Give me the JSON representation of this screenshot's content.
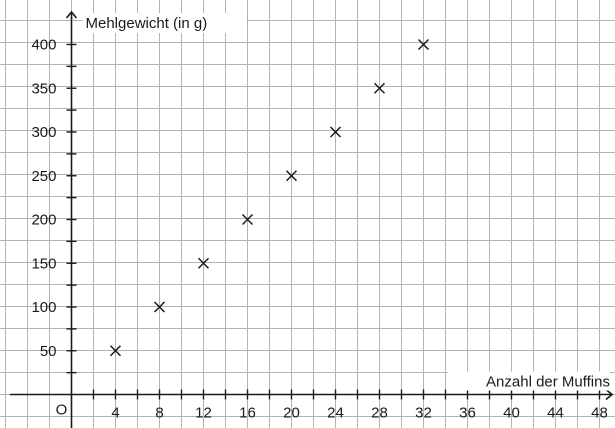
{
  "chart_data": {
    "type": "scatter",
    "ylabel": "Mehlgewicht (in g)",
    "xlabel": "Anzahl der Muffins",
    "origin_label": "O",
    "x": [
      4,
      8,
      12,
      16,
      20,
      24,
      28,
      32
    ],
    "y": [
      50,
      100,
      150,
      200,
      250,
      300,
      350,
      400
    ],
    "xlim": [
      0,
      48
    ],
    "ylim": [
      0,
      400
    ],
    "x_ticks": [
      4,
      8,
      12,
      16,
      20,
      24,
      28,
      32,
      36,
      40,
      44,
      48
    ],
    "y_ticks": [
      50,
      100,
      150,
      200,
      250,
      300,
      350,
      400
    ],
    "marker": "x",
    "grid": true,
    "colors": {
      "marks": "#1a1a1a",
      "grid": "#b3b3b3",
      "background": "#ffffff"
    }
  }
}
